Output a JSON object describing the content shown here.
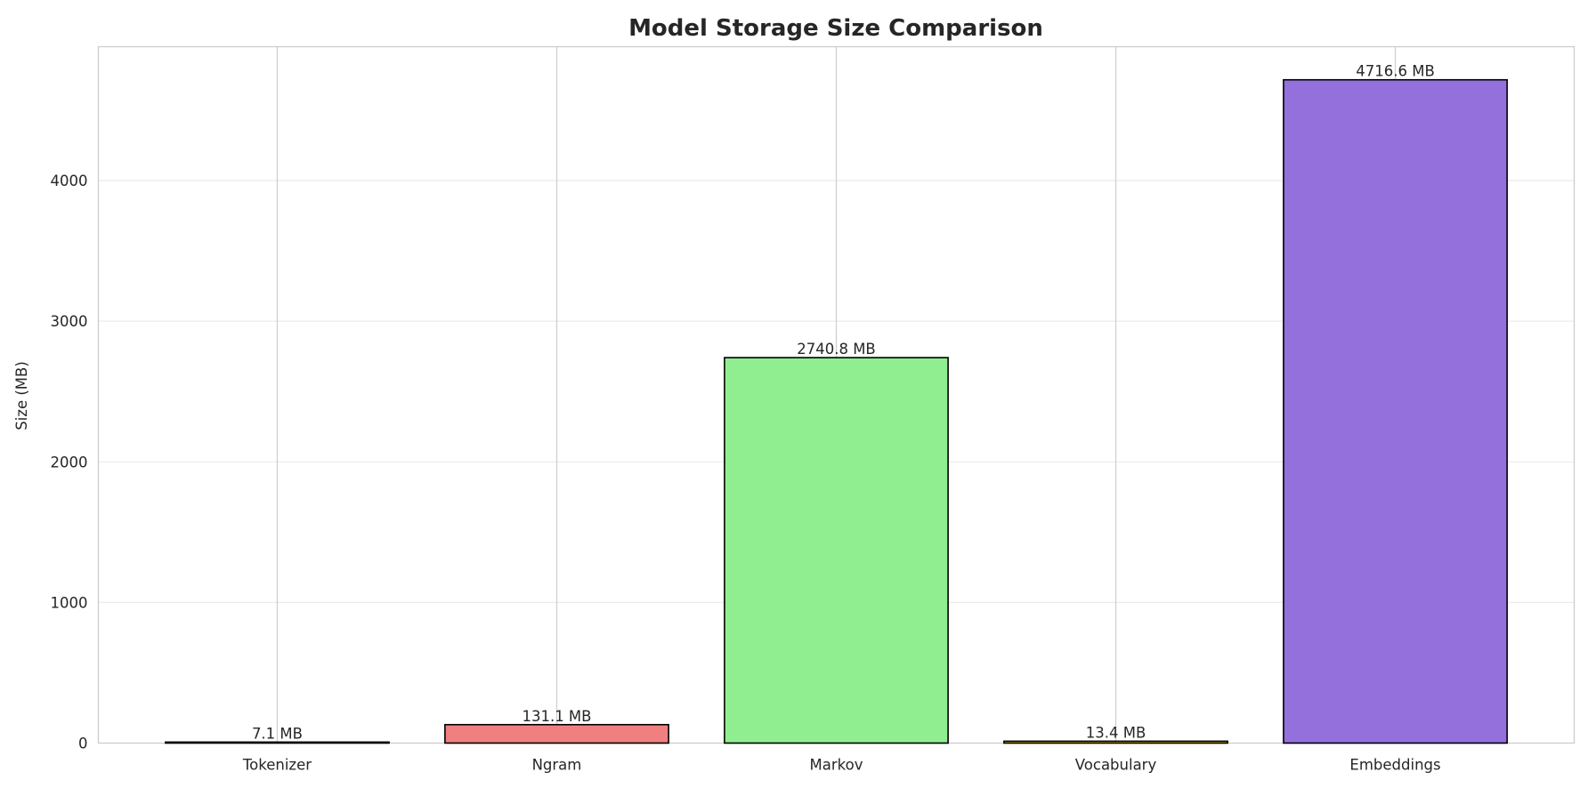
{
  "chart_data": {
    "type": "bar",
    "title": "Model Storage Size Comparison",
    "xlabel": "",
    "ylabel": "Size (MB)",
    "categories": [
      "Tokenizer",
      "Ngram",
      "Markov",
      "Vocabulary",
      "Embeddings"
    ],
    "values": [
      7.1,
      131.1,
      2740.8,
      13.4,
      4716.6
    ],
    "data_labels": [
      "7.1 MB",
      "131.1 MB",
      "2740.8 MB",
      "13.4 MB",
      "4716.6 MB"
    ],
    "colors": [
      "#87ceeb",
      "#f08080",
      "#90ee90",
      "#ffd700",
      "#9370db"
    ],
    "edge_color": "#000000",
    "ylim": [
      0,
      4952
    ],
    "yticks": [
      0,
      1000,
      2000,
      3000,
      4000
    ],
    "grid": true,
    "legend": "none"
  }
}
